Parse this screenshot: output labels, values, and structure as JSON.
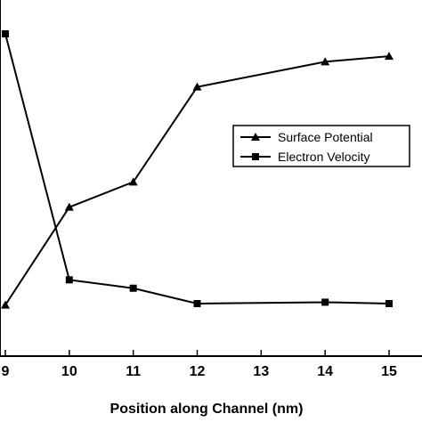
{
  "chart_data": {
    "type": "line",
    "xlabel": "Position along Channel (nm)",
    "ylabel": "",
    "title": "",
    "x_ticks": [
      "9",
      "10",
      "11",
      "12",
      "13",
      "14",
      "15"
    ],
    "xlim": [
      9,
      15
    ],
    "ylim": [
      0,
      1
    ],
    "y_ticks_visible": false,
    "grid": false,
    "legend_position": "right",
    "series": [
      {
        "name": "Surface Potential",
        "marker": "triangle",
        "x": [
          9,
          10,
          11,
          12,
          14,
          15
        ],
        "values": [
          0.03,
          0.38,
          0.47,
          0.81,
          0.9,
          0.92
        ]
      },
      {
        "name": "Electron Velocity",
        "marker": "square",
        "x": [
          9,
          10,
          11,
          12,
          14,
          15
        ],
        "values": [
          1.0,
          0.12,
          0.09,
          0.035,
          0.04,
          0.035
        ]
      }
    ]
  }
}
